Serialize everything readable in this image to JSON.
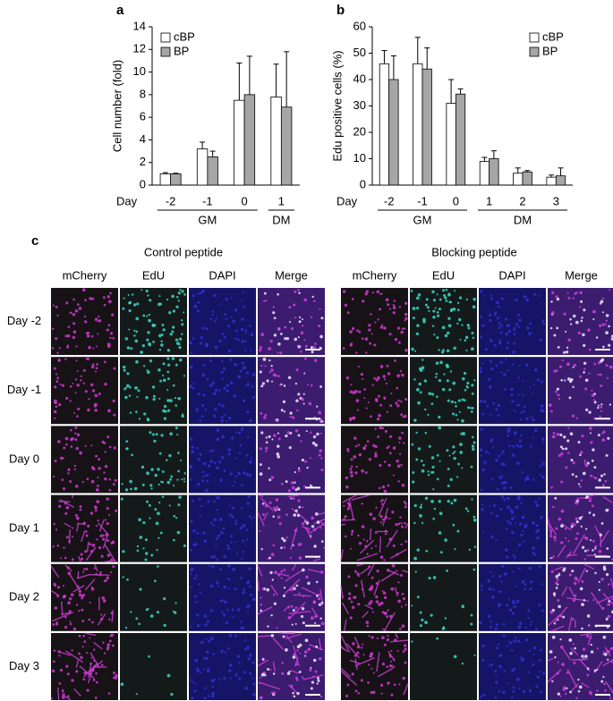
{
  "chart_data": [
    {
      "type": "bar",
      "panel_label": "a",
      "ylabel": "Cell number (fold)",
      "xlabel": "Day",
      "categories": [
        "-2",
        "-1",
        "0",
        "1"
      ],
      "category_groups": [
        "GM",
        "GM",
        "GM",
        "DM"
      ],
      "series": [
        {
          "name": "cBP",
          "color": "#ffffff",
          "values": [
            1.0,
            3.2,
            7.5,
            7.8
          ],
          "errors": [
            0.1,
            0.6,
            3.3,
            2.9
          ]
        },
        {
          "name": "BP",
          "color": "#a6a6a6",
          "values": [
            1.0,
            2.5,
            8.0,
            6.9
          ],
          "errors": [
            0.05,
            0.5,
            3.4,
            4.9
          ]
        }
      ],
      "ylim": [
        0,
        14
      ],
      "yticks": [
        0,
        2,
        4,
        6,
        8,
        10,
        12,
        14
      ],
      "legend": "upper left"
    },
    {
      "type": "bar",
      "panel_label": "b",
      "ylabel": "Edu positive cells (%)",
      "xlabel": "Day",
      "categories": [
        "-2",
        "-1",
        "0",
        "1",
        "2",
        "3"
      ],
      "category_groups": [
        "GM",
        "GM",
        "GM",
        "DM",
        "DM",
        "DM"
      ],
      "series": [
        {
          "name": "cBP",
          "color": "#ffffff",
          "values": [
            46,
            46,
            31,
            9,
            4.5,
            3
          ],
          "errors": [
            5,
            10,
            9,
            1.5,
            2,
            0.8
          ]
        },
        {
          "name": "BP",
          "color": "#a6a6a6",
          "values": [
            40,
            44,
            34.5,
            10,
            5,
            3.5
          ],
          "errors": [
            9,
            8,
            2,
            3,
            0.5,
            3
          ]
        }
      ],
      "ylim": [
        0,
        60
      ],
      "yticks": [
        0,
        10,
        20,
        30,
        40,
        50,
        60
      ],
      "legend": "upper right"
    }
  ],
  "panel_c": {
    "panel_label": "c",
    "groups": [
      "Control peptide",
      "Blocking peptide"
    ],
    "channels": [
      "mCherry",
      "EdU",
      "DAPI",
      "Merge"
    ],
    "rows": [
      "Day -2",
      "Day -1",
      "Day 0",
      "Day 1",
      "Day 2",
      "Day 3"
    ]
  }
}
